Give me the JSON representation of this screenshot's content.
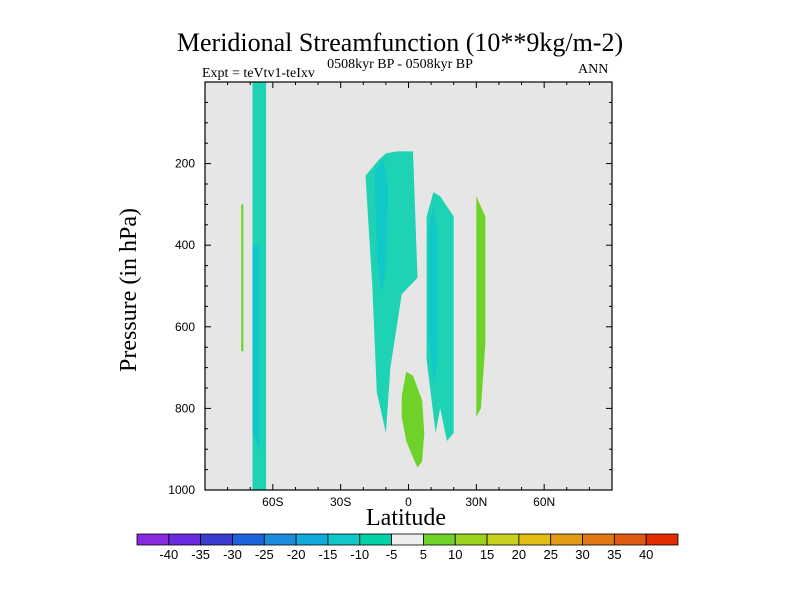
{
  "chart_data": {
    "type": "heatmap",
    "title": "Meridional Streamfunction (10**9kg/m-2)",
    "subtitle": "0508kyr BP - 0508kyr BP",
    "left_label": "Expt = teVtv1-teIxv",
    "right_label": "ANN",
    "xlabel": "Latitude",
    "ylabel": "Pressure (in hPa)",
    "xlim": [
      -90,
      90
    ],
    "ylim": [
      1000,
      0
    ],
    "x_ticks": [
      {
        "value": -60,
        "label": "60S"
      },
      {
        "value": -30,
        "label": "30S"
      },
      {
        "value": 0,
        "label": "0"
      },
      {
        "value": 30,
        "label": "30N"
      },
      {
        "value": 60,
        "label": "60N"
      }
    ],
    "y_ticks": [
      {
        "value": 200,
        "label": "200"
      },
      {
        "value": 400,
        "label": "400"
      },
      {
        "value": 600,
        "label": "600"
      },
      {
        "value": 800,
        "label": "800"
      },
      {
        "value": 1000,
        "label": "1000"
      }
    ],
    "background_color": "#e6e6e6",
    "colorbar": {
      "labels": [
        "-40",
        "-35",
        "-30",
        "-25",
        "-20",
        "-15",
        "-10",
        "-5",
        "5",
        "10",
        "15",
        "20",
        "25",
        "30",
        "35",
        "40"
      ],
      "colors": [
        "#8a2be2",
        "#6a2be0",
        "#3c3cd2",
        "#1e64dc",
        "#1e8cdc",
        "#10aadc",
        "#10c8c8",
        "#00d2a5",
        "#eeeeee",
        "#6ed228",
        "#9bd21e",
        "#c8d21e",
        "#e1be14",
        "#e19b14",
        "#e17814",
        "#e15a14",
        "#e12d00"
      ]
    },
    "regions": [
      {
        "name": "sh-polar-cell",
        "value": -7.5,
        "color": "#1ed2b4",
        "polygon": [
          [
            -69,
            0
          ],
          [
            -63,
            0
          ],
          [
            -63,
            1000
          ],
          [
            -69,
            1000
          ]
        ]
      },
      {
        "name": "sh-polar-cell-core",
        "value": -12.5,
        "color": "#10c8c8",
        "polygon": [
          [
            -69,
            400
          ],
          [
            -66,
            400
          ],
          [
            -66,
            900
          ],
          [
            -69,
            860
          ]
        ]
      },
      {
        "name": "sh-weak-positive",
        "value": 7.5,
        "color": "#6ed228",
        "polygon": [
          [
            -74,
            300
          ],
          [
            -73,
            300
          ],
          [
            -73,
            660
          ],
          [
            -74,
            660
          ]
        ]
      },
      {
        "name": "tropical-negative-cell",
        "value": -7.5,
        "color": "#1ed2b4",
        "polygon": [
          [
            -19,
            230
          ],
          [
            -13,
            190
          ],
          [
            -10,
            175
          ],
          [
            -5,
            170
          ],
          [
            2,
            170
          ],
          [
            4,
            480
          ],
          [
            -3,
            520
          ],
          [
            -8,
            700
          ],
          [
            -10,
            860
          ],
          [
            -14,
            760
          ],
          [
            -16,
            500
          ]
        ]
      },
      {
        "name": "tropical-negative-core",
        "value": -12.5,
        "color": "#10c8c8",
        "polygon": [
          [
            -15,
            220
          ],
          [
            -11,
            190
          ],
          [
            -9,
            260
          ],
          [
            -10,
            460
          ],
          [
            -12,
            520
          ],
          [
            -14,
            420
          ]
        ]
      },
      {
        "name": "nh-negative-cell",
        "value": -7.5,
        "color": "#1ed2b4",
        "polygon": [
          [
            8,
            330
          ],
          [
            11,
            270
          ],
          [
            14,
            280
          ],
          [
            20,
            330
          ],
          [
            20,
            860
          ],
          [
            17,
            880
          ],
          [
            14,
            800
          ],
          [
            12,
            860
          ],
          [
            8,
            680
          ]
        ]
      },
      {
        "name": "nh-negative-core",
        "value": -12.5,
        "color": "#10c8c8",
        "polygon": [
          [
            9,
            360
          ],
          [
            11,
            300
          ],
          [
            13,
            380
          ],
          [
            13,
            680
          ],
          [
            11,
            740
          ],
          [
            9,
            620
          ]
        ]
      },
      {
        "name": "lower-tropical-positive",
        "value": 7.5,
        "color": "#6ed228",
        "polygon": [
          [
            -3,
            770
          ],
          [
            -1,
            710
          ],
          [
            2,
            720
          ],
          [
            6,
            780
          ],
          [
            7,
            860
          ],
          [
            6,
            930
          ],
          [
            4,
            945
          ],
          [
            2,
            920
          ],
          [
            -1,
            880
          ],
          [
            -3,
            820
          ]
        ]
      },
      {
        "name": "nh-positive-cell",
        "value": 7.5,
        "color": "#6ed228",
        "polygon": [
          [
            30,
            280
          ],
          [
            34,
            330
          ],
          [
            34,
            640
          ],
          [
            32,
            800
          ],
          [
            30,
            820
          ],
          [
            30,
            500
          ]
        ]
      }
    ]
  }
}
